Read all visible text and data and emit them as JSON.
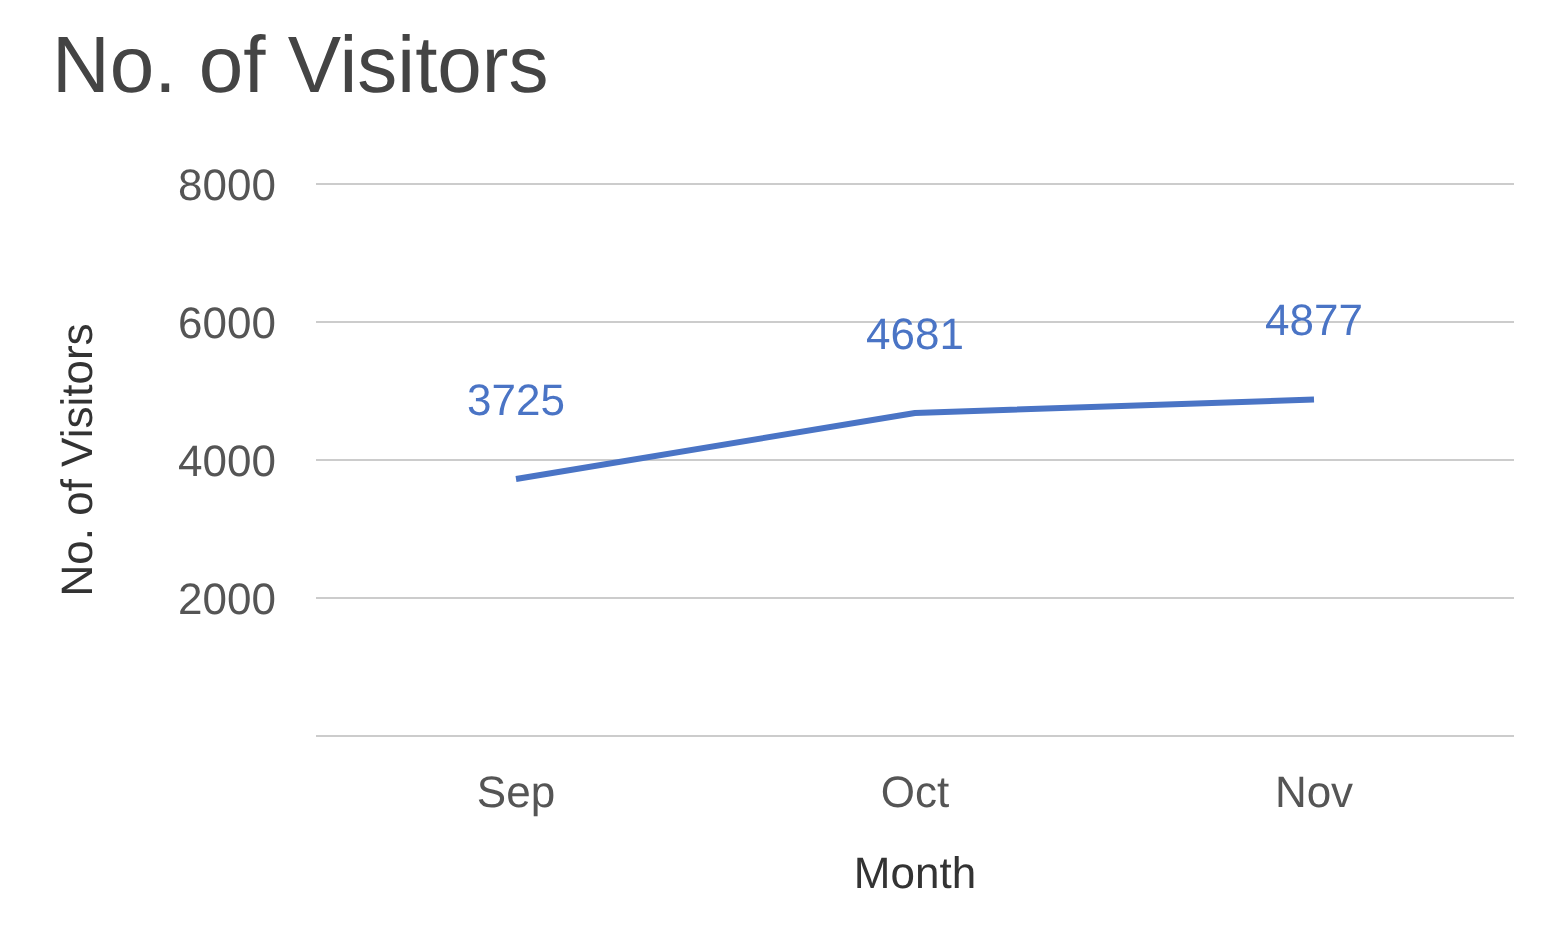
{
  "chart_data": {
    "type": "line",
    "title": "No. of Visitors",
    "xlabel": "Month",
    "ylabel": "No. of Visitors",
    "categories": [
      "Sep",
      "Oct",
      "Nov"
    ],
    "series": [
      {
        "color": "#4a74c5",
        "values": [
          3725,
          4681,
          4877
        ]
      }
    ],
    "ylim": [
      0,
      8000
    ],
    "yticks": [
      2000,
      4000,
      6000,
      8000
    ],
    "grid": "y",
    "data_labels": true,
    "marker": "none"
  }
}
